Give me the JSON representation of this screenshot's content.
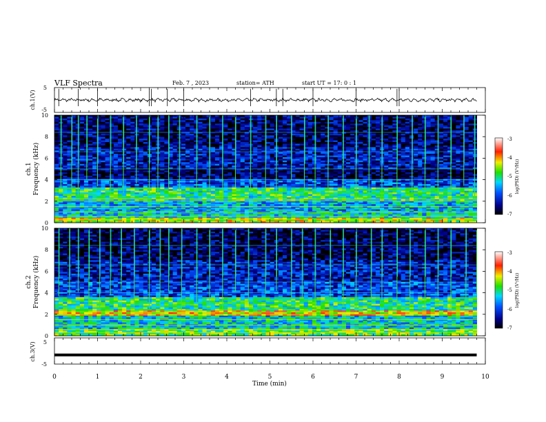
{
  "header": {
    "title": "VLF  Spectra",
    "date": "Feb. 7  , 2023",
    "station": "station= ATH",
    "start_ut": "start  UT  =   17: 0  : 1"
  },
  "chart_data": [
    {
      "type": "line",
      "panel": "ch1-waveform",
      "ylabel": "ch.1(V)",
      "ylim": [
        -5,
        5
      ],
      "y_ticks": [
        "5",
        "-5"
      ],
      "xlim": [
        0,
        10
      ],
      "line_color": "#000000",
      "baseline_v": 0.0,
      "spike_times_min": [
        2.2,
        2.25,
        2.62,
        5.3,
        7.0,
        7.95,
        8.0,
        6.0,
        1.0,
        0.55,
        0.1,
        3.0,
        4.55,
        5.15
      ]
    },
    {
      "type": "heatmap",
      "panel": "ch1-spectrogram",
      "ylabel": "ch.1\nFrequency (kHz)",
      "ylabel_line1": "ch.1",
      "ylabel_line2": "Frequency (kHz)",
      "ylim": [
        0,
        10
      ],
      "y_ticks": [
        "0",
        "2",
        "4",
        "6",
        "8",
        "10"
      ],
      "xlim": [
        0,
        10
      ],
      "colorbar": {
        "label": "log(PSD) (V²/Hz)",
        "range": [
          -7,
          -3
        ],
        "ticks": [
          "-3",
          "-4",
          "-5",
          "-6",
          "-7"
        ]
      },
      "bands_khz": [
        {
          "from": 0.0,
          "to": 0.4,
          "level": -4.5
        },
        {
          "from": 0.4,
          "to": 1.0,
          "level": -5.3
        },
        {
          "from": 1.0,
          "to": 2.0,
          "level": -5.5
        },
        {
          "from": 2.0,
          "to": 3.3,
          "level": -5.0
        },
        {
          "from": 3.3,
          "to": 4.0,
          "level": -6.0
        },
        {
          "from": 4.0,
          "to": 5.0,
          "level": -6.7
        },
        {
          "from": 5.0,
          "to": 7.0,
          "level": -6.3
        },
        {
          "from": 7.0,
          "to": 10.0,
          "level": -6.6
        }
      ],
      "spherics_min": [
        0.15,
        0.4,
        0.55,
        0.75,
        1.0,
        1.3,
        1.6,
        1.9,
        2.2,
        2.4,
        2.65,
        2.9,
        3.3,
        3.6,
        3.9,
        4.2,
        4.55,
        4.9,
        5.15,
        5.5,
        5.8,
        6.05,
        6.35,
        6.7,
        7.0,
        7.3,
        7.6,
        7.95,
        8.3,
        8.6,
        8.9,
        9.2,
        9.5,
        9.75
      ]
    },
    {
      "type": "heatmap",
      "panel": "ch2-spectrogram",
      "ylabel": "ch.2\nFrequency (kHz)",
      "ylabel_line1": "ch.2",
      "ylabel_line2": "Frequency (kHz)",
      "ylim": [
        0,
        10
      ],
      "y_ticks": [
        "0",
        "2",
        "4",
        "6",
        "8",
        "10"
      ],
      "xlim": [
        0,
        10
      ],
      "colorbar": {
        "label": "log(PSD) (V²/Hz)",
        "range": [
          -7,
          -3
        ],
        "ticks": [
          "-3",
          "-4",
          "-5",
          "-6",
          "-7"
        ]
      },
      "bands_khz": [
        {
          "from": 0.0,
          "to": 0.6,
          "level": -4.8
        },
        {
          "from": 0.6,
          "to": 1.8,
          "level": -5.3
        },
        {
          "from": 1.8,
          "to": 2.3,
          "level": -4.2
        },
        {
          "from": 2.3,
          "to": 3.6,
          "level": -5.0
        },
        {
          "from": 3.6,
          "to": 5.0,
          "level": -6.0
        },
        {
          "from": 5.0,
          "to": 7.0,
          "level": -6.3
        },
        {
          "from": 7.0,
          "to": 10.0,
          "level": -6.7
        }
      ],
      "spherics_min": [
        0.1,
        0.35,
        0.55,
        0.8,
        1.05,
        1.3,
        1.55,
        1.85,
        2.2,
        2.45,
        2.65,
        2.95,
        3.3,
        3.6,
        3.9,
        4.2,
        4.5,
        4.9,
        5.15,
        5.5,
        5.75,
        6.05,
        6.4,
        6.7,
        7.0,
        7.35,
        7.6,
        7.95,
        8.25,
        8.6,
        8.9,
        9.2,
        9.55,
        9.8
      ]
    },
    {
      "type": "line",
      "panel": "ch3-waveform",
      "ylabel": "ch.3(V)",
      "ylim": [
        -5,
        5
      ],
      "y_ticks": [
        "5",
        "-5"
      ],
      "xlim": [
        0,
        10
      ],
      "xlabel": "Time  (min)",
      "x_ticks": [
        "0",
        "1",
        "2",
        "3",
        "4",
        "5",
        "6",
        "7",
        "8",
        "9",
        "10"
      ],
      "baseline_v": -1.5,
      "data_end_min": 9.8
    }
  ]
}
